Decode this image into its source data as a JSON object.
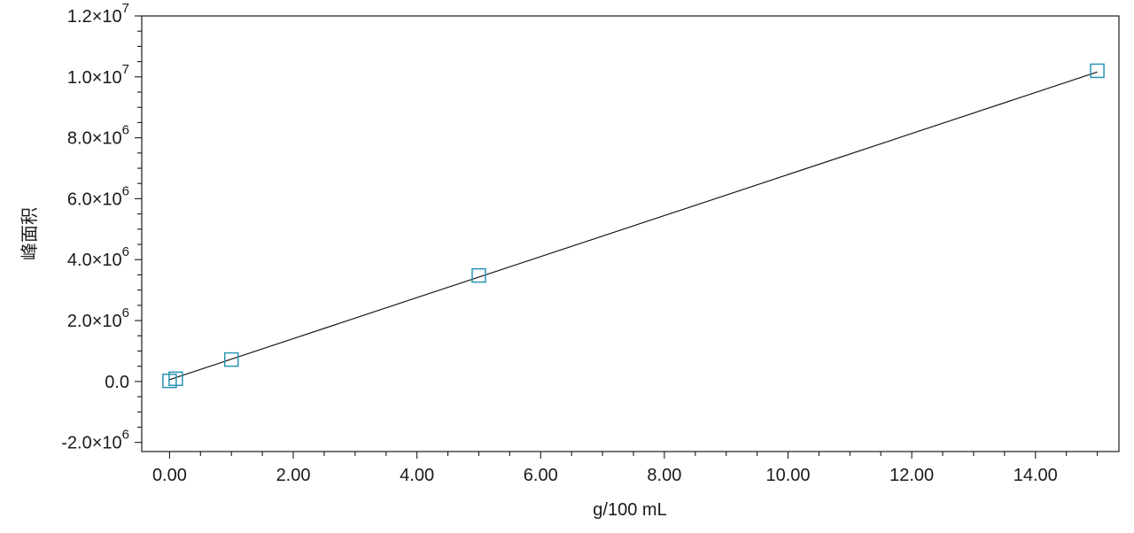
{
  "chart_data": {
    "type": "scatter",
    "xlabel": "g/100 mL",
    "ylabel": "峰面积",
    "xlim": [
      -0.45,
      15.35
    ],
    "ylim": [
      -2300000.0,
      12000000.0
    ],
    "x_ticks": [
      0,
      2,
      4,
      6,
      8,
      10,
      12,
      14
    ],
    "x_tick_labels": [
      "0.00",
      "2.00",
      "4.00",
      "6.00",
      "8.00",
      "10.00",
      "12.00",
      "14.00"
    ],
    "x_minor_step": 0.5,
    "y_ticks": [
      -2000000,
      0,
      2000000,
      4000000,
      6000000,
      8000000,
      10000000,
      12000000
    ],
    "y_tick_labels": [
      {
        "mant": "-2.0×10",
        "exp": "6"
      },
      {
        "mant": "0.0",
        "exp": ""
      },
      {
        "mant": "2.0×10",
        "exp": "6"
      },
      {
        "mant": "4.0×10",
        "exp": "6"
      },
      {
        "mant": "6.0×10",
        "exp": "6"
      },
      {
        "mant": "8.0×10",
        "exp": "6"
      },
      {
        "mant": "1.0×10",
        "exp": "7"
      },
      {
        "mant": "1.2×10",
        "exp": "7"
      }
    ],
    "y_minor_step": 500000,
    "grid": false,
    "series": [
      {
        "points": [
          {
            "x": 0.0,
            "y": 20000
          },
          {
            "x": 0.1,
            "y": 90000
          },
          {
            "x": 1.0,
            "y": 720000
          },
          {
            "x": 5.0,
            "y": 3480000
          },
          {
            "x": 15.0,
            "y": 10200000
          }
        ],
        "fit_line": {
          "x": [
            0.0,
            15.0
          ],
          "y": [
            60000,
            10160000
          ]
        }
      }
    ],
    "colors": {
      "marker": "#2a93b5",
      "line": "#1a1a1a",
      "axes": "#1a1a1a"
    }
  }
}
